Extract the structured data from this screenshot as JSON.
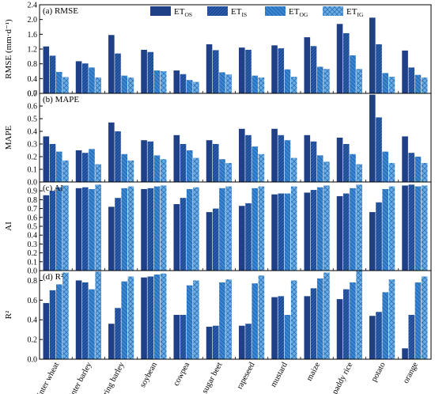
{
  "chart_data": {
    "type": "bar",
    "categories": [
      "winter wheat",
      "winter barley",
      "spring barley",
      "soybean",
      "cowpea",
      "sugar beet",
      "rapeseed",
      "mustard",
      "maize",
      "paddy rice",
      "potato",
      "orange"
    ],
    "series": [
      {
        "name": "ET",
        "sub": "OS",
        "color": "#1f3f86"
      },
      {
        "name": "ET",
        "sub": "IS",
        "color": "#2a5fb0"
      },
      {
        "name": "ET",
        "sub": "OG",
        "color": "#3a86d0"
      },
      {
        "name": "ET",
        "sub": "IG",
        "color": "#5fa6e0"
      }
    ],
    "legend_position": "top-center",
    "panels": [
      {
        "title": "(a) RMSE",
        "ylabel": "RMSE (mm·d⁻¹)",
        "ylim": [
          0,
          2.4
        ],
        "yticks": [
          "0.0",
          "0.4",
          "0.8",
          "1.2",
          "1.6",
          "2.0",
          "2.4"
        ],
        "tick_values": [
          0,
          0.4,
          0.8,
          1.2,
          1.6,
          2.0,
          2.4
        ],
        "values": [
          [
            1.27,
            1.02,
            0.58,
            0.44
          ],
          [
            0.87,
            0.81,
            0.7,
            0.43
          ],
          [
            1.58,
            1.08,
            0.48,
            0.43
          ],
          [
            1.18,
            1.12,
            0.62,
            0.6
          ],
          [
            0.62,
            0.52,
            0.36,
            0.31
          ],
          [
            1.33,
            1.17,
            0.57,
            0.51
          ],
          [
            1.24,
            1.18,
            0.48,
            0.43
          ],
          [
            1.3,
            1.22,
            0.65,
            0.45
          ],
          [
            1.52,
            1.28,
            0.72,
            0.66
          ],
          [
            1.88,
            1.63,
            1.03,
            0.66
          ],
          [
            2.05,
            1.33,
            0.55,
            0.45
          ],
          [
            1.16,
            0.7,
            0.5,
            0.43
          ]
        ]
      },
      {
        "title": "(b) MAPE",
        "ylabel": "MAPE",
        "ylim": [
          0,
          0.7
        ],
        "yticks": [
          "0.0",
          "0.1",
          "0.2",
          "0.3",
          "0.4",
          "0.5",
          "0.6",
          "0.7"
        ],
        "tick_values": [
          0,
          0.1,
          0.2,
          0.3,
          0.4,
          0.5,
          0.6,
          0.7
        ],
        "values": [
          [
            0.36,
            0.3,
            0.24,
            0.17
          ],
          [
            0.25,
            0.23,
            0.26,
            0.14
          ],
          [
            0.47,
            0.4,
            0.22,
            0.17
          ],
          [
            0.33,
            0.32,
            0.21,
            0.18
          ],
          [
            0.37,
            0.3,
            0.25,
            0.19
          ],
          [
            0.33,
            0.3,
            0.18,
            0.15
          ],
          [
            0.42,
            0.37,
            0.28,
            0.22
          ],
          [
            0.42,
            0.37,
            0.33,
            0.19
          ],
          [
            0.37,
            0.32,
            0.21,
            0.16
          ],
          [
            0.35,
            0.3,
            0.22,
            0.14
          ],
          [
            0.69,
            0.51,
            0.24,
            0.15
          ],
          [
            0.36,
            0.23,
            0.2,
            0.15
          ]
        ]
      },
      {
        "title": "(c) AI",
        "ylabel": "AI",
        "ylim": [
          0,
          1.0
        ],
        "yticks": [
          "0.0",
          "0.1",
          "0.2",
          "0.3",
          "0.4",
          "0.5",
          "0.6",
          "0.7",
          "0.8",
          "0.9"
        ],
        "tick_values": [
          0,
          0.1,
          0.2,
          0.3,
          0.4,
          0.5,
          0.6,
          0.7,
          0.8,
          0.9
        ],
        "values": [
          [
            0.85,
            0.9,
            0.94,
            0.96
          ],
          [
            0.93,
            0.94,
            0.92,
            0.97
          ],
          [
            0.72,
            0.82,
            0.93,
            0.95
          ],
          [
            0.92,
            0.93,
            0.95,
            0.96
          ],
          [
            0.75,
            0.82,
            0.92,
            0.94
          ],
          [
            0.66,
            0.7,
            0.93,
            0.95
          ],
          [
            0.73,
            0.76,
            0.93,
            0.95
          ],
          [
            0.86,
            0.87,
            0.87,
            0.95
          ],
          [
            0.88,
            0.91,
            0.94,
            0.96
          ],
          [
            0.84,
            0.87,
            0.93,
            0.97
          ],
          [
            0.66,
            0.77,
            0.92,
            0.95
          ],
          [
            0.96,
            0.97,
            0.95,
            0.96
          ]
        ]
      },
      {
        "title": "(d) R²",
        "ylabel": "R²",
        "ylim": [
          0,
          0.9
        ],
        "yticks": [
          "0.0",
          "0.2",
          "0.4",
          "0.6",
          "0.8"
        ],
        "tick_values": [
          0,
          0.2,
          0.4,
          0.6,
          0.8
        ],
        "values": [
          [
            0.57,
            0.7,
            0.76,
            0.88
          ],
          [
            0.8,
            0.78,
            0.71,
            0.89
          ],
          [
            0.36,
            0.52,
            0.79,
            0.84
          ],
          [
            0.83,
            0.84,
            0.86,
            0.87
          ],
          [
            0.45,
            0.45,
            0.75,
            0.8
          ],
          [
            0.33,
            0.34,
            0.78,
            0.81
          ],
          [
            0.34,
            0.36,
            0.77,
            0.85
          ],
          [
            0.63,
            0.64,
            0.45,
            0.8
          ],
          [
            0.64,
            0.72,
            0.82,
            0.88
          ],
          [
            0.61,
            0.71,
            0.78,
            0.9
          ],
          [
            0.44,
            0.48,
            0.68,
            0.81
          ],
          [
            0.11,
            0.45,
            0.78,
            0.84
          ]
        ]
      }
    ]
  }
}
